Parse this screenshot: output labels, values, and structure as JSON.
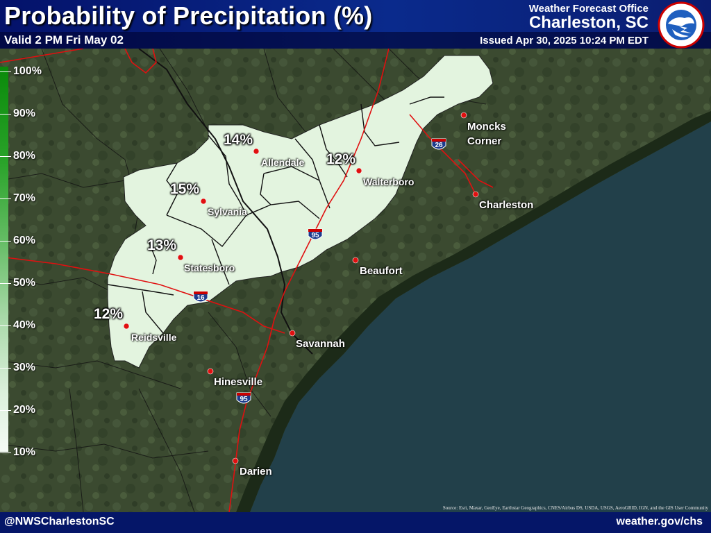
{
  "header": {
    "title": "Probability of Precipitation (%)",
    "valid": "Valid 2 PM Fri May 02",
    "office_label": "Weather Forecast Office",
    "office_name": "Charleston, SC",
    "issued": "Issued Apr 30, 2025 10:24 PM EDT",
    "logo_text": "NATIONAL WEATHER SERVICE"
  },
  "legend": {
    "labels": [
      "100%",
      "90%",
      "80%",
      "70%",
      "60%",
      "50%",
      "40%",
      "30%",
      "20%",
      "10%"
    ]
  },
  "pop_values": [
    {
      "value": "14%",
      "place": "Allendale"
    },
    {
      "value": "12%",
      "place": "Walterboro"
    },
    {
      "value": "15%",
      "place": "Sylvania"
    },
    {
      "value": "13%",
      "place": "Statesboro"
    },
    {
      "value": "12%",
      "place": "Reidsville"
    }
  ],
  "cities": {
    "moncks_corner": "Moncks\nCorner",
    "allendale": "Allendale",
    "walterboro": "Walterboro",
    "sylvania": "Sylvania",
    "charleston": "Charleston",
    "statesboro": "Statesboro",
    "beaufort": "Beaufort",
    "reidsville": "Reidsville",
    "savannah": "Savannah",
    "hinesville": "Hinesville",
    "darien": "Darien"
  },
  "highways": [
    "26",
    "95",
    "16",
    "95"
  ],
  "source": "Source: Esri, Maxar, GeoEye, Earthstar Geographics, CNES/Airbus DS, USDA, USGS, AeroGRID, IGN, and the GIS User Community",
  "footer": {
    "social": "@NWSCharlestonSC",
    "website": "weather.gov/chs"
  },
  "colors": {
    "header": "#0a2a8c",
    "pop_fill": "#e3f4df",
    "roads": "#e01010",
    "ocean": "#22404a"
  }
}
